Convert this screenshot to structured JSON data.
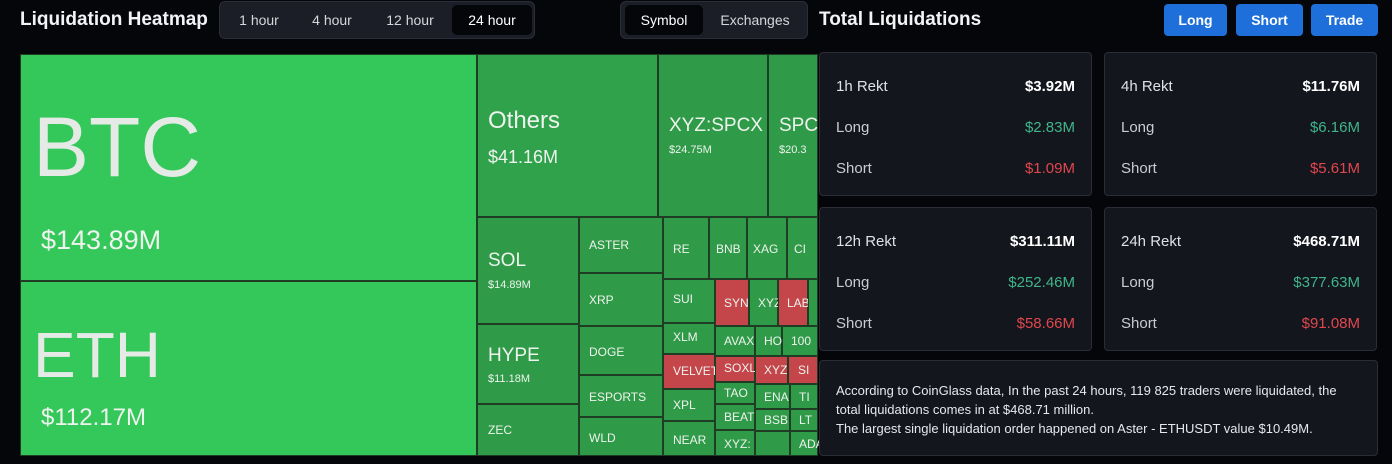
{
  "header": {
    "heatmap_title": "Liquidation Heatmap",
    "time_tabs": [
      "1 hour",
      "4 hour",
      "12 hour",
      "24 hour"
    ],
    "active_time_tab": "24 hour",
    "group_tabs": [
      "Symbol",
      "Exchanges"
    ],
    "active_group_tab": "Symbol",
    "total_title": "Total Liquidations",
    "buttons": {
      "long": "Long",
      "short": "Short",
      "trade": "Trade"
    }
  },
  "treemap": {
    "btc": {
      "name": "BTC",
      "value": "$143.89M"
    },
    "eth": {
      "name": "ETH",
      "value": "$112.17M"
    },
    "others": {
      "name": "Others",
      "value": "$41.16M"
    },
    "xyzspcx": {
      "name": "XYZ:SPCX",
      "value": "$24.75M"
    },
    "spc": {
      "name": "SPC",
      "value": "$20.3"
    },
    "sol": {
      "name": "SOL",
      "value": "$14.89M"
    },
    "hype": {
      "name": "HYPE",
      "value": "$11.18M"
    },
    "zec": {
      "name": "ZEC"
    },
    "aster": {
      "name": "ASTER"
    },
    "xrp": {
      "name": "XRP"
    },
    "doge": {
      "name": "DOGE"
    },
    "esports": {
      "name": "ESPORTS"
    },
    "wld": {
      "name": "WLD"
    },
    "re": {
      "name": "RE"
    },
    "bnb": {
      "name": "BNB"
    },
    "xag": {
      "name": "XAG"
    },
    "ci": {
      "name": "CI"
    },
    "sui": {
      "name": "SUI"
    },
    "syn": {
      "name": "SYN"
    },
    "xyz2": {
      "name": "XYZ"
    },
    "lab": {
      "name": "LAB"
    },
    "xlm": {
      "name": "XLM"
    },
    "avax": {
      "name": "AVAX"
    },
    "ho": {
      "name": "HO"
    },
    "c100": {
      "name": "100"
    },
    "velvet": {
      "name": "VELVET"
    },
    "soxl": {
      "name": "SOXL"
    },
    "xyzdot": {
      "name": "XYZ:"
    },
    "si": {
      "name": "SI"
    },
    "xpl": {
      "name": "XPL"
    },
    "tao": {
      "name": "TAO"
    },
    "ena": {
      "name": "ENA"
    },
    "ti": {
      "name": "TI"
    },
    "beat": {
      "name": "BEAT"
    },
    "bsb": {
      "name": "BSB"
    },
    "lt": {
      "name": "LT"
    },
    "near": {
      "name": "NEAR"
    },
    "xyzcolon": {
      "name": "XYZ:"
    },
    "ada": {
      "name": "ADA"
    }
  },
  "cards": [
    {
      "title": "1h Rekt",
      "total": "$3.92M",
      "long_label": "Long",
      "long": "$2.83M",
      "short_label": "Short",
      "short": "$1.09M"
    },
    {
      "title": "4h Rekt",
      "total": "$11.76M",
      "long_label": "Long",
      "long": "$6.16M",
      "short_label": "Short",
      "short": "$5.61M"
    },
    {
      "title": "12h Rekt",
      "total": "$311.11M",
      "long_label": "Long",
      "long": "$252.46M",
      "short_label": "Short",
      "short": "$58.66M"
    },
    {
      "title": "24h Rekt",
      "total": "$468.71M",
      "long_label": "Long",
      "long": "$377.63M",
      "short_label": "Short",
      "short": "$91.08M"
    }
  ],
  "summary": {
    "line1": "According to CoinGlass data, In the past 24 hours, 119 825 traders were liquidated, the total liquidations comes in at $468.71 million.",
    "line2": "The largest single liquidation order happened on Aster - ETHUSDT value $10.49M."
  },
  "colors": {
    "accent": "#1e6fd9",
    "long": "#3fb58a",
    "short": "#e0474d",
    "heat_green": "#34c85a",
    "heat_red": "#c4454a"
  }
}
